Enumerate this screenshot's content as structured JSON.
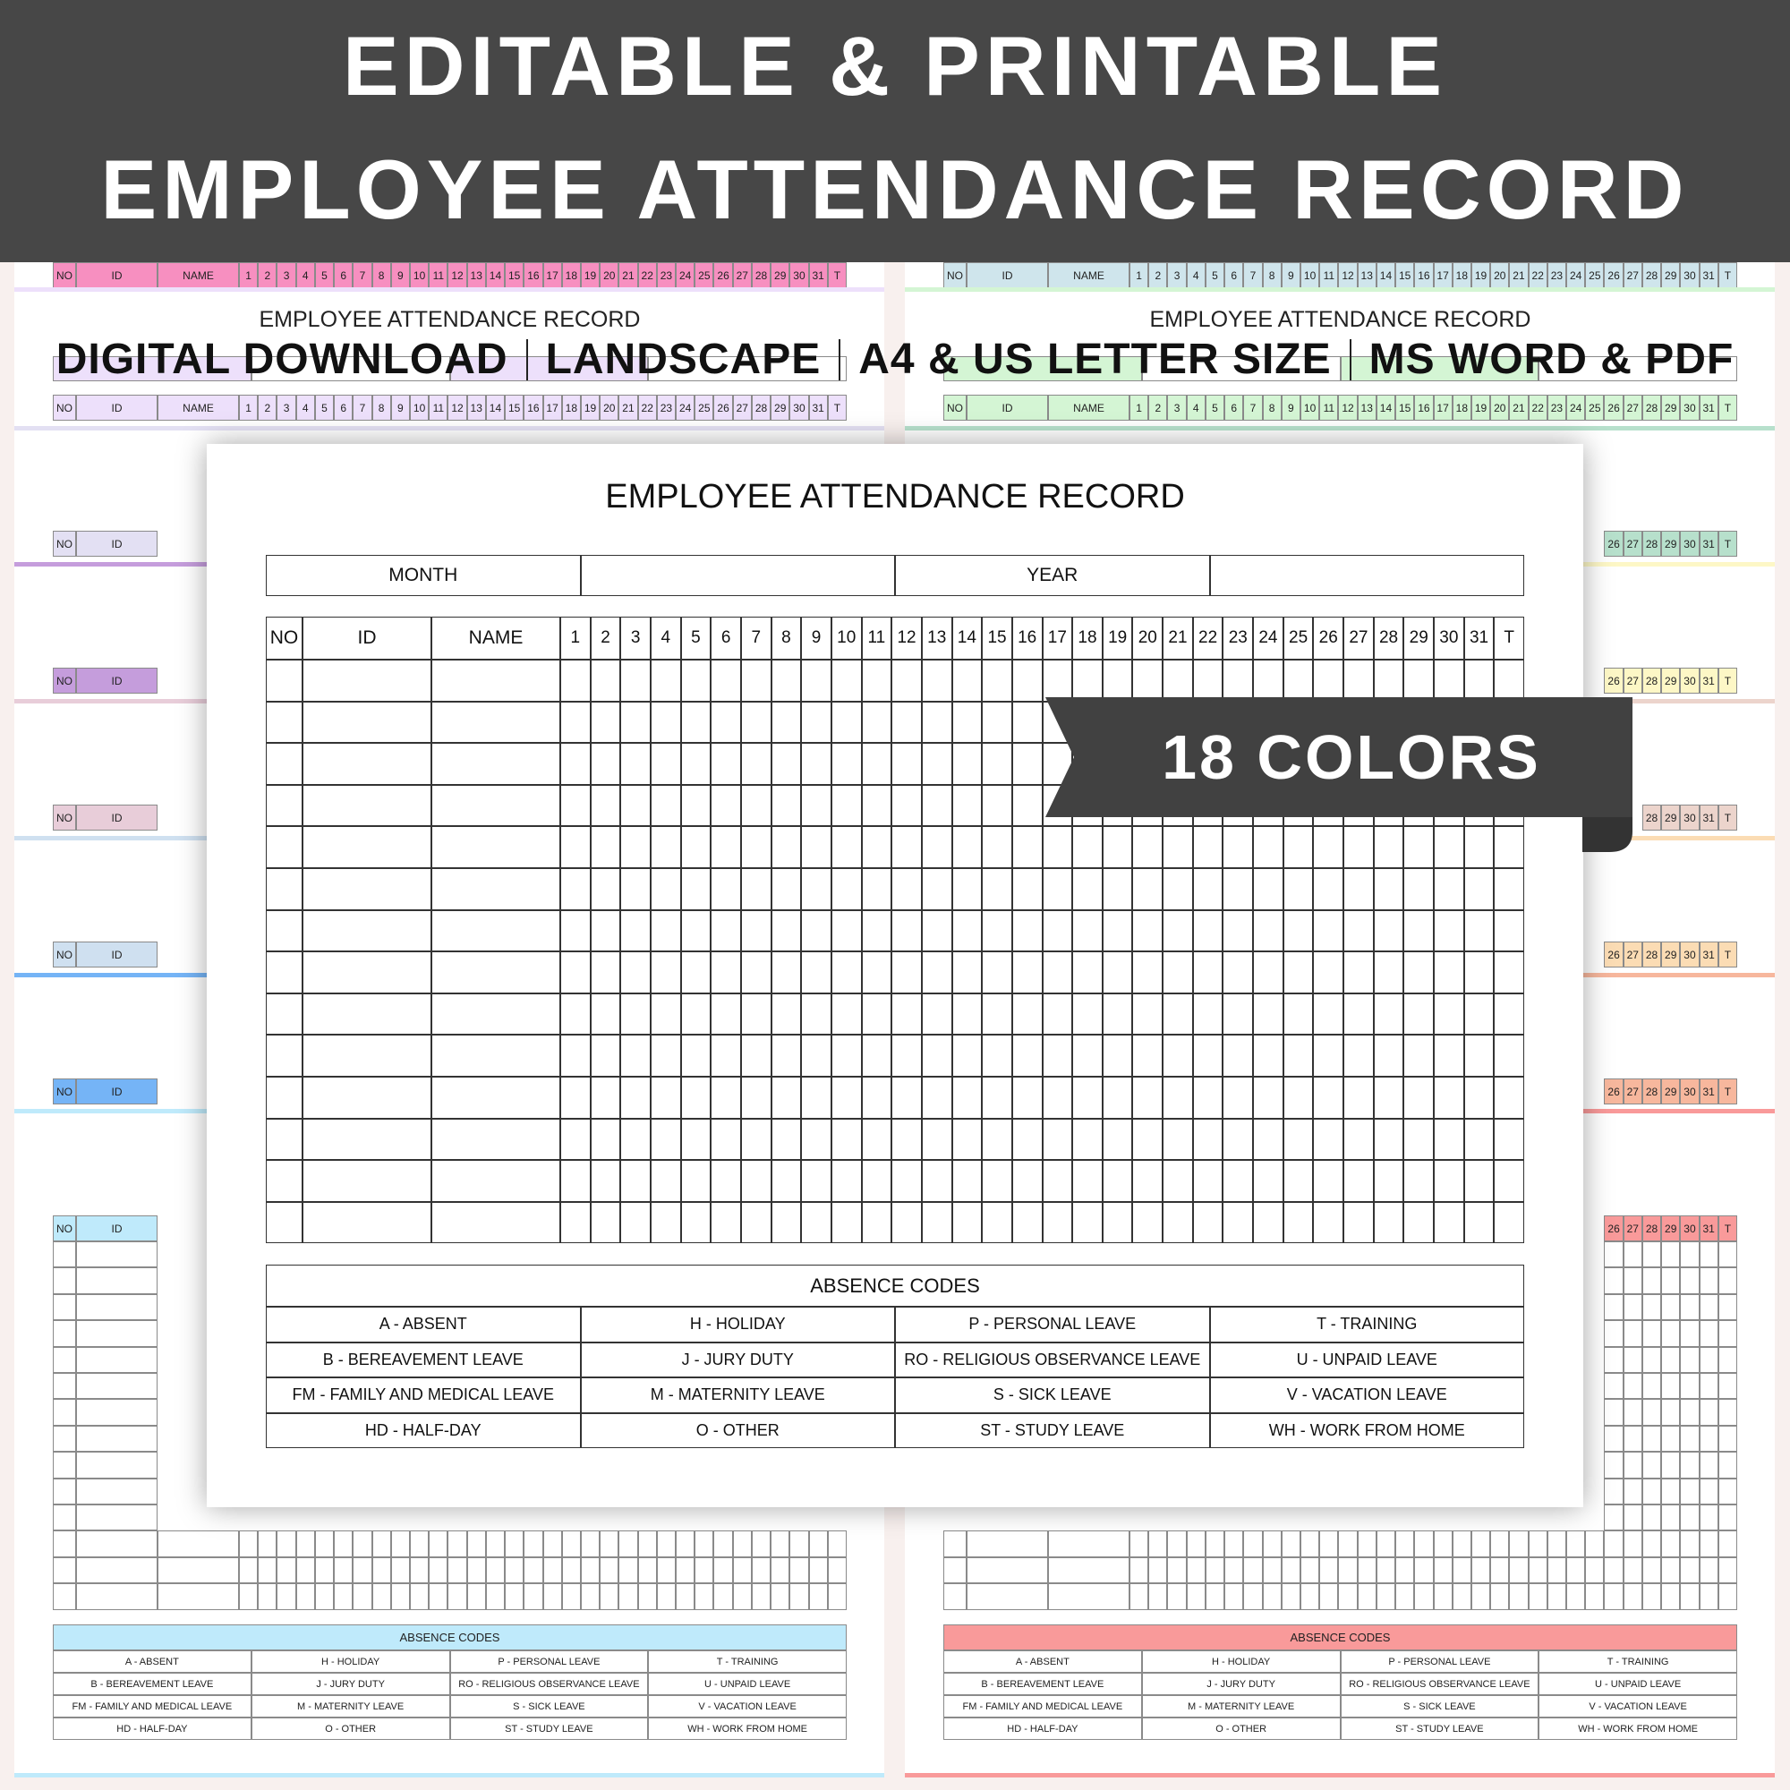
{
  "header": {
    "line1": "EDITABLE & PRINTABLE",
    "line2": "EMPLOYEE ATTENDANCE RECORD"
  },
  "subtitle": [
    "DIGITAL DOWNLOAD",
    "LANDSCAPE",
    "A4 & US LETTER SIZE",
    "MS WORD & PDF"
  ],
  "banner": {
    "label": "18 COLORS",
    "color": "#414141"
  },
  "form": {
    "title": "EMPLOYEE ATTENDANCE RECORD",
    "month_label": "MONTH",
    "year_label": "YEAR",
    "columns": [
      "NO",
      "ID",
      "NAME"
    ],
    "days": [
      "1",
      "2",
      "3",
      "4",
      "5",
      "6",
      "7",
      "8",
      "9",
      "10",
      "11",
      "12",
      "13",
      "14",
      "15",
      "16",
      "17",
      "18",
      "19",
      "20",
      "21",
      "22",
      "23",
      "24",
      "25",
      "26",
      "27",
      "28",
      "29",
      "30",
      "31"
    ],
    "total_label": "T",
    "absence_title": "ABSENCE CODES",
    "absence_codes": [
      [
        "A - ABSENT",
        "H - HOLIDAY",
        "P - PERSONAL LEAVE",
        "T - TRAINING"
      ],
      [
        "B - BEREAVEMENT LEAVE",
        "J - JURY DUTY",
        "RO - RELIGIOUS OBSERVANCE LEAVE",
        "U - UNPAID LEAVE"
      ],
      [
        "FM - FAMILY AND MEDICAL LEAVE",
        "M - MATERNITY LEAVE",
        "S - SICK LEAVE",
        "V - VACATION LEAVE"
      ],
      [
        "HD - HALF-DAY",
        "O - OTHER",
        "ST - STUDY LEAVE",
        "WH - WORK FROM HOME"
      ]
    ]
  },
  "sheets": {
    "left_colors": [
      "#f78fc0",
      "#ede0fb",
      "#e3e0f3",
      "#c59ddc",
      "#e8cdd9",
      "#cfe0f0",
      "#75b4f6",
      "#bfeafb"
    ],
    "right_colors": [
      "#cfe5ec",
      "#d4f5d4",
      "#b7e0cc",
      "#fdf7c6",
      "#ecd4cc",
      "#fbdcb4",
      "#f7b79d",
      "#f99a9a"
    ]
  }
}
